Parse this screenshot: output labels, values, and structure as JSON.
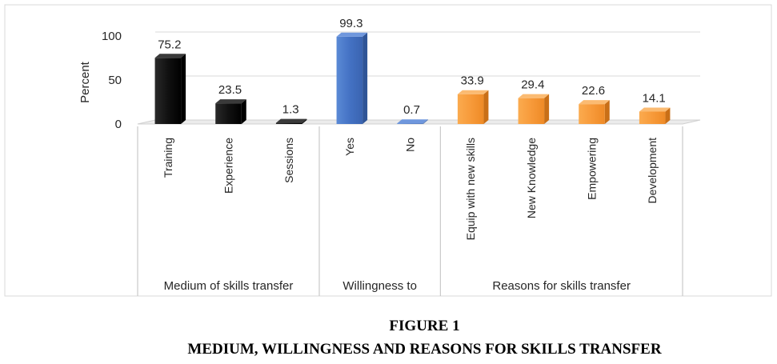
{
  "caption": {
    "figure_number": "FIGURE 1",
    "title": "MEDIUM, WILLINGNESS AND REASONS FOR SKILLS TRANSFER"
  },
  "chart_data": {
    "type": "bar",
    "ylabel": "Percent",
    "ylim": [
      0,
      100
    ],
    "yticks": [
      "0",
      "50",
      "100"
    ],
    "grid": true,
    "groups": [
      {
        "name": "Medium of skills transfer",
        "color": "#1a1a1a",
        "categories": [
          "Training",
          "Experience",
          "Sessions"
        ],
        "values": [
          75.2,
          23.5,
          1.3
        ],
        "labels": [
          "75.2",
          "23.5",
          "1.3"
        ]
      },
      {
        "name": "Willingness to",
        "color": "#4472c4",
        "categories": [
          "Yes",
          "No"
        ],
        "values": [
          99.3,
          0.7
        ],
        "labels": [
          "99.3",
          "0.7"
        ]
      },
      {
        "name": "Reasons for skills transfer",
        "color": "#f79a3a",
        "categories": [
          "Equip with new skills",
          "New Knowledge",
          "Empowering",
          "Development"
        ],
        "values": [
          33.9,
          29.4,
          22.6,
          14.1
        ],
        "labels": [
          "33.9",
          "29.4",
          "22.6",
          "14.1"
        ]
      }
    ]
  }
}
